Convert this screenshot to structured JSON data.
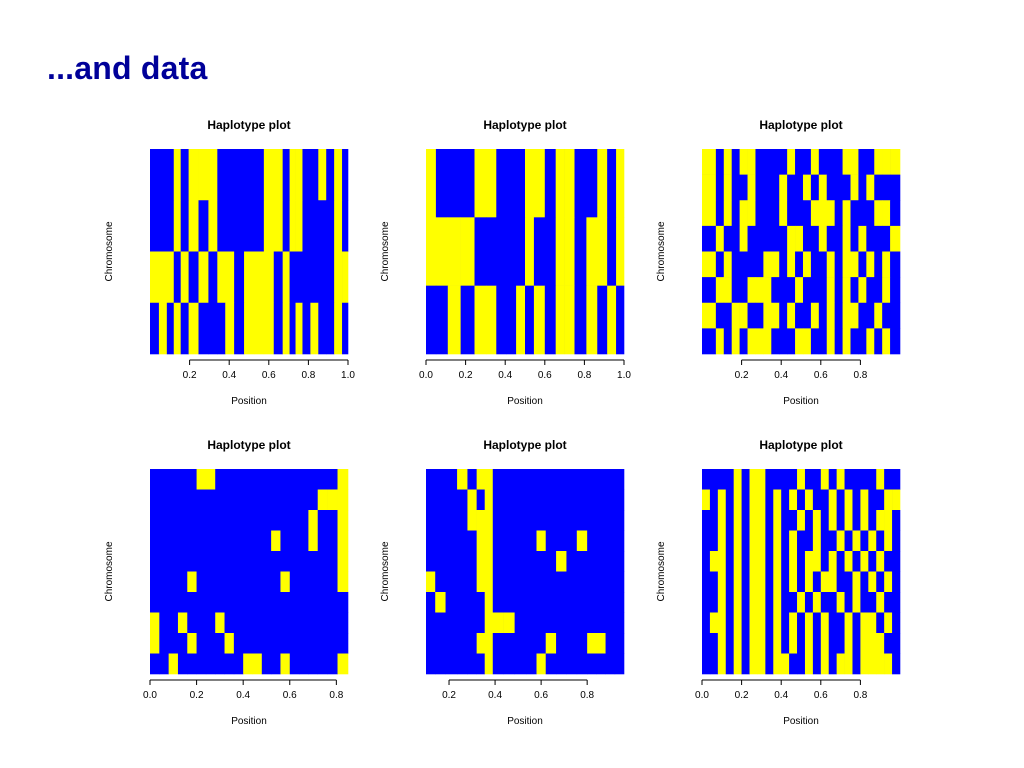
{
  "slide": {
    "title": "...and data"
  },
  "colors": {
    "allele0": "#0000FF",
    "allele1": "#FFFF00",
    "axis": "#000000",
    "background": "#FFFFFF"
  },
  "chart_data": [
    {
      "type": "heatmap",
      "title": "Haplotype plot",
      "xlabel": "Position",
      "ylabel": "Chromosome",
      "xlim": [
        0.0,
        1.0
      ],
      "xticks": [
        0.2,
        0.4,
        0.6,
        0.8,
        1.0
      ],
      "xtick_labels": [
        "0.2",
        "0.4",
        "0.6",
        "0.8",
        "1.0"
      ],
      "chromosomes": 4,
      "markers": [
        0.02,
        0.07,
        0.1,
        0.14,
        0.17,
        0.22,
        0.27,
        0.32,
        0.36,
        0.4,
        0.45,
        0.5,
        0.55,
        0.6,
        0.65,
        0.69,
        0.72,
        0.75,
        0.79,
        0.83,
        0.87,
        0.91,
        0.95,
        0.99
      ],
      "haplotypes": [
        [
          0,
          0,
          0,
          1,
          0,
          1,
          1,
          1,
          0,
          0,
          0,
          0,
          0,
          1,
          1,
          0,
          1,
          1,
          0,
          0,
          1,
          0,
          1,
          0
        ],
        [
          0,
          0,
          0,
          1,
          0,
          1,
          0,
          1,
          0,
          0,
          0,
          0,
          0,
          1,
          1,
          0,
          1,
          1,
          0,
          0,
          0,
          0,
          1,
          0
        ],
        [
          1,
          1,
          1,
          0,
          1,
          0,
          1,
          0,
          1,
          1,
          0,
          1,
          1,
          1,
          0,
          1,
          0,
          0,
          0,
          0,
          0,
          0,
          1,
          1
        ],
        [
          0,
          1,
          0,
          1,
          0,
          1,
          0,
          0,
          0,
          1,
          0,
          1,
          1,
          1,
          0,
          1,
          0,
          1,
          0,
          1,
          0,
          0,
          1,
          0
        ]
      ]
    },
    {
      "type": "heatmap",
      "title": "Haplotype plot",
      "xlabel": "Position",
      "ylabel": "Chromosome",
      "xlim": [
        0.0,
        1.0
      ],
      "xticks": [
        0.0,
        0.2,
        0.4,
        0.6,
        0.8,
        1.0
      ],
      "xtick_labels": [
        "0.0",
        "0.2",
        "0.4",
        "0.6",
        "0.8",
        "1.0"
      ],
      "chromosomes": 3,
      "markers": [
        0.02,
        0.08,
        0.14,
        0.21,
        0.28,
        0.33,
        0.38,
        0.43,
        0.48,
        0.52,
        0.57,
        0.63,
        0.68,
        0.72,
        0.78,
        0.84,
        0.89,
        0.94,
        0.98
      ],
      "haplotypes": [
        [
          1,
          0,
          0,
          0,
          1,
          1,
          0,
          0,
          0,
          1,
          1,
          0,
          1,
          1,
          0,
          0,
          1,
          0,
          1
        ],
        [
          1,
          1,
          1,
          1,
          0,
          0,
          0,
          0,
          0,
          1,
          0,
          0,
          1,
          1,
          0,
          1,
          1,
          0,
          1
        ],
        [
          0,
          0,
          1,
          0,
          1,
          1,
          0,
          0,
          1,
          0,
          1,
          0,
          1,
          1,
          0,
          1,
          0,
          1,
          0
        ]
      ]
    },
    {
      "type": "heatmap",
      "title": "Haplotype plot",
      "xlabel": "Position",
      "ylabel": "Chromosome",
      "xlim": [
        0.0,
        1.0
      ],
      "xticks": [
        0.2,
        0.4,
        0.6,
        0.8
      ],
      "xtick_labels": [
        "0.2",
        "0.4",
        "0.6",
        "0.8"
      ],
      "chromosomes": 8,
      "markers": [
        0.05,
        0.09,
        0.13,
        0.17,
        0.21,
        0.25,
        0.29,
        0.33,
        0.37,
        0.41,
        0.45,
        0.49,
        0.53,
        0.57,
        0.61,
        0.65,
        0.69,
        0.73,
        0.77,
        0.81,
        0.85,
        0.89,
        0.93,
        0.97
      ],
      "haplotypes": [
        [
          1,
          0,
          1,
          0,
          1,
          1,
          0,
          0,
          0,
          0,
          1,
          0,
          0,
          1,
          0,
          0,
          0,
          1,
          1,
          0,
          0,
          1,
          1,
          1
        ],
        [
          1,
          0,
          1,
          0,
          0,
          1,
          0,
          0,
          0,
          1,
          0,
          0,
          1,
          0,
          1,
          0,
          0,
          0,
          1,
          0,
          1,
          0,
          0,
          0
        ],
        [
          1,
          0,
          1,
          0,
          1,
          1,
          0,
          0,
          0,
          1,
          0,
          0,
          0,
          1,
          1,
          1,
          0,
          1,
          0,
          0,
          0,
          1,
          1,
          0
        ],
        [
          0,
          1,
          0,
          0,
          1,
          0,
          0,
          0,
          0,
          0,
          1,
          1,
          0,
          0,
          1,
          0,
          0,
          1,
          0,
          1,
          0,
          0,
          0,
          1
        ],
        [
          1,
          0,
          1,
          0,
          0,
          0,
          0,
          1,
          1,
          0,
          1,
          0,
          1,
          0,
          0,
          1,
          0,
          1,
          1,
          0,
          1,
          0,
          1,
          0
        ],
        [
          0,
          1,
          1,
          0,
          0,
          1,
          1,
          1,
          0,
          0,
          0,
          1,
          0,
          0,
          0,
          1,
          0,
          1,
          0,
          1,
          0,
          0,
          1,
          0
        ],
        [
          1,
          0,
          0,
          1,
          1,
          0,
          0,
          1,
          1,
          0,
          1,
          0,
          0,
          1,
          0,
          1,
          0,
          1,
          1,
          0,
          0,
          1,
          0,
          0
        ],
        [
          0,
          1,
          0,
          1,
          0,
          1,
          1,
          1,
          0,
          0,
          0,
          1,
          1,
          0,
          0,
          1,
          0,
          1,
          0,
          0,
          1,
          0,
          1,
          0
        ]
      ]
    },
    {
      "type": "heatmap",
      "title": "Haplotype plot",
      "xlabel": "Position",
      "ylabel": "Chromosome",
      "xlim": [
        0.0,
        0.85
      ],
      "xticks": [
        0.0,
        0.2,
        0.4,
        0.6,
        0.8
      ],
      "xtick_labels": [
        "0.0",
        "0.2",
        "0.4",
        "0.6",
        "0.8"
      ],
      "chromosomes": 10,
      "markers": [
        0.02,
        0.06,
        0.1,
        0.14,
        0.18,
        0.22,
        0.26,
        0.3,
        0.34,
        0.38,
        0.42,
        0.46,
        0.5,
        0.54,
        0.58,
        0.62,
        0.66,
        0.7,
        0.74,
        0.78,
        0.83
      ],
      "haplotypes": [
        [
          0,
          0,
          0,
          0,
          0,
          1,
          1,
          0,
          0,
          0,
          0,
          0,
          0,
          0,
          0,
          0,
          0,
          0,
          0,
          0,
          1
        ],
        [
          0,
          0,
          0,
          0,
          0,
          0,
          0,
          0,
          0,
          0,
          0,
          0,
          0,
          0,
          0,
          0,
          0,
          0,
          1,
          1,
          1
        ],
        [
          0,
          0,
          0,
          0,
          0,
          0,
          0,
          0,
          0,
          0,
          0,
          0,
          0,
          0,
          0,
          0,
          0,
          1,
          0,
          0,
          1
        ],
        [
          0,
          0,
          0,
          0,
          0,
          0,
          0,
          0,
          0,
          0,
          0,
          0,
          0,
          1,
          0,
          0,
          0,
          1,
          0,
          0,
          1
        ],
        [
          0,
          0,
          0,
          0,
          0,
          0,
          0,
          0,
          0,
          0,
          0,
          0,
          0,
          0,
          0,
          0,
          0,
          0,
          0,
          0,
          1
        ],
        [
          0,
          0,
          0,
          0,
          1,
          0,
          0,
          0,
          0,
          0,
          0,
          0,
          0,
          0,
          1,
          0,
          0,
          0,
          0,
          0,
          1
        ],
        [
          0,
          0,
          0,
          0,
          0,
          0,
          0,
          0,
          0,
          0,
          0,
          0,
          0,
          0,
          0,
          0,
          0,
          0,
          0,
          0,
          0
        ],
        [
          1,
          0,
          0,
          1,
          0,
          0,
          0,
          1,
          0,
          0,
          0,
          0,
          0,
          0,
          0,
          0,
          0,
          0,
          0,
          0,
          0
        ],
        [
          1,
          0,
          0,
          0,
          1,
          0,
          0,
          0,
          1,
          0,
          0,
          0,
          0,
          0,
          0,
          0,
          0,
          0,
          0,
          0,
          0
        ],
        [
          0,
          0,
          1,
          0,
          0,
          0,
          0,
          0,
          0,
          0,
          1,
          1,
          0,
          0,
          1,
          0,
          0,
          0,
          0,
          0,
          1
        ]
      ]
    },
    {
      "type": "heatmap",
      "title": "Haplotype plot",
      "xlabel": "Position",
      "ylabel": "Chromosome",
      "xlim": [
        0.1,
        0.96
      ],
      "xticks": [
        0.2,
        0.4,
        0.6,
        0.8
      ],
      "xtick_labels": [
        "0.2",
        "0.4",
        "0.6",
        "0.8"
      ],
      "chromosomes": 10,
      "markers": [
        0.12,
        0.16,
        0.21,
        0.26,
        0.3,
        0.34,
        0.37,
        0.41,
        0.46,
        0.51,
        0.56,
        0.6,
        0.64,
        0.69,
        0.73,
        0.78,
        0.82,
        0.86,
        0.9,
        0.94
      ],
      "haplotypes": [
        [
          0,
          0,
          0,
          1,
          0,
          1,
          1,
          0,
          0,
          0,
          0,
          0,
          0,
          0,
          0,
          0,
          0,
          0,
          0,
          0
        ],
        [
          0,
          0,
          0,
          0,
          1,
          0,
          1,
          0,
          0,
          0,
          0,
          0,
          0,
          0,
          0,
          0,
          0,
          0,
          0,
          0
        ],
        [
          0,
          0,
          0,
          0,
          1,
          1,
          1,
          0,
          0,
          0,
          0,
          0,
          0,
          0,
          0,
          0,
          0,
          0,
          0,
          0
        ],
        [
          0,
          0,
          0,
          0,
          0,
          1,
          1,
          0,
          0,
          0,
          0,
          1,
          0,
          0,
          0,
          1,
          0,
          0,
          0,
          0
        ],
        [
          0,
          0,
          0,
          0,
          0,
          1,
          1,
          0,
          0,
          0,
          0,
          0,
          0,
          1,
          0,
          0,
          0,
          0,
          0,
          0
        ],
        [
          1,
          0,
          0,
          0,
          0,
          1,
          1,
          0,
          0,
          0,
          0,
          0,
          0,
          0,
          0,
          0,
          0,
          0,
          0,
          0
        ],
        [
          0,
          1,
          0,
          0,
          0,
          0,
          1,
          0,
          0,
          0,
          0,
          0,
          0,
          0,
          0,
          0,
          0,
          0,
          0,
          0
        ],
        [
          0,
          0,
          0,
          0,
          0,
          0,
          1,
          1,
          1,
          0,
          0,
          0,
          0,
          0,
          0,
          0,
          0,
          0,
          0,
          0
        ],
        [
          0,
          0,
          0,
          0,
          0,
          1,
          1,
          0,
          0,
          0,
          0,
          0,
          1,
          0,
          0,
          0,
          1,
          1,
          0,
          0
        ],
        [
          0,
          0,
          0,
          0,
          0,
          0,
          1,
          0,
          0,
          0,
          0,
          1,
          0,
          0,
          0,
          0,
          0,
          0,
          0,
          0
        ]
      ]
    },
    {
      "type": "heatmap",
      "title": "Haplotype plot",
      "xlabel": "Position",
      "ylabel": "Chromosome",
      "xlim": [
        0.0,
        1.0
      ],
      "xticks": [
        0.0,
        0.2,
        0.4,
        0.6,
        0.8
      ],
      "xtick_labels": [
        "0.0",
        "0.2",
        "0.4",
        "0.6",
        "0.8"
      ],
      "chromosomes": 10,
      "markers": [
        0.02,
        0.06,
        0.1,
        0.14,
        0.18,
        0.22,
        0.26,
        0.3,
        0.34,
        0.38,
        0.42,
        0.46,
        0.5,
        0.54,
        0.58,
        0.62,
        0.66,
        0.7,
        0.74,
        0.78,
        0.82,
        0.86,
        0.9,
        0.94,
        0.98
      ],
      "haplotypes": [
        [
          0,
          0,
          0,
          0,
          1,
          0,
          1,
          1,
          0,
          0,
          0,
          0,
          1,
          0,
          0,
          1,
          0,
          1,
          0,
          0,
          0,
          0,
          1,
          0,
          0
        ],
        [
          1,
          0,
          1,
          0,
          1,
          0,
          1,
          1,
          0,
          1,
          0,
          1,
          0,
          1,
          0,
          0,
          1,
          0,
          1,
          0,
          1,
          0,
          0,
          1,
          1
        ],
        [
          0,
          0,
          1,
          0,
          1,
          0,
          1,
          1,
          0,
          1,
          0,
          0,
          1,
          0,
          1,
          0,
          1,
          0,
          1,
          0,
          1,
          0,
          1,
          1,
          0
        ],
        [
          0,
          0,
          1,
          0,
          1,
          0,
          1,
          1,
          0,
          1,
          0,
          1,
          0,
          0,
          1,
          0,
          0,
          1,
          0,
          1,
          0,
          1,
          0,
          1,
          0
        ],
        [
          0,
          1,
          1,
          0,
          1,
          0,
          1,
          1,
          0,
          1,
          0,
          1,
          0,
          1,
          1,
          0,
          1,
          0,
          1,
          0,
          1,
          0,
          1,
          0,
          0
        ],
        [
          0,
          0,
          1,
          0,
          1,
          0,
          1,
          1,
          0,
          1,
          0,
          1,
          0,
          1,
          0,
          1,
          1,
          0,
          0,
          1,
          0,
          1,
          0,
          1,
          0
        ],
        [
          0,
          0,
          1,
          0,
          1,
          0,
          1,
          1,
          0,
          1,
          0,
          0,
          1,
          0,
          1,
          0,
          0,
          1,
          0,
          1,
          0,
          0,
          1,
          0,
          0
        ],
        [
          0,
          1,
          1,
          0,
          1,
          0,
          1,
          1,
          0,
          1,
          0,
          1,
          0,
          1,
          0,
          1,
          0,
          0,
          1,
          0,
          1,
          1,
          0,
          1,
          0
        ],
        [
          0,
          0,
          1,
          0,
          1,
          0,
          1,
          1,
          0,
          1,
          0,
          1,
          0,
          1,
          0,
          1,
          0,
          0,
          1,
          0,
          1,
          1,
          1,
          0,
          0
        ],
        [
          0,
          0,
          1,
          0,
          1,
          0,
          1,
          1,
          0,
          1,
          1,
          0,
          0,
          1,
          0,
          1,
          0,
          1,
          1,
          0,
          1,
          1,
          1,
          1,
          0
        ]
      ]
    }
  ]
}
